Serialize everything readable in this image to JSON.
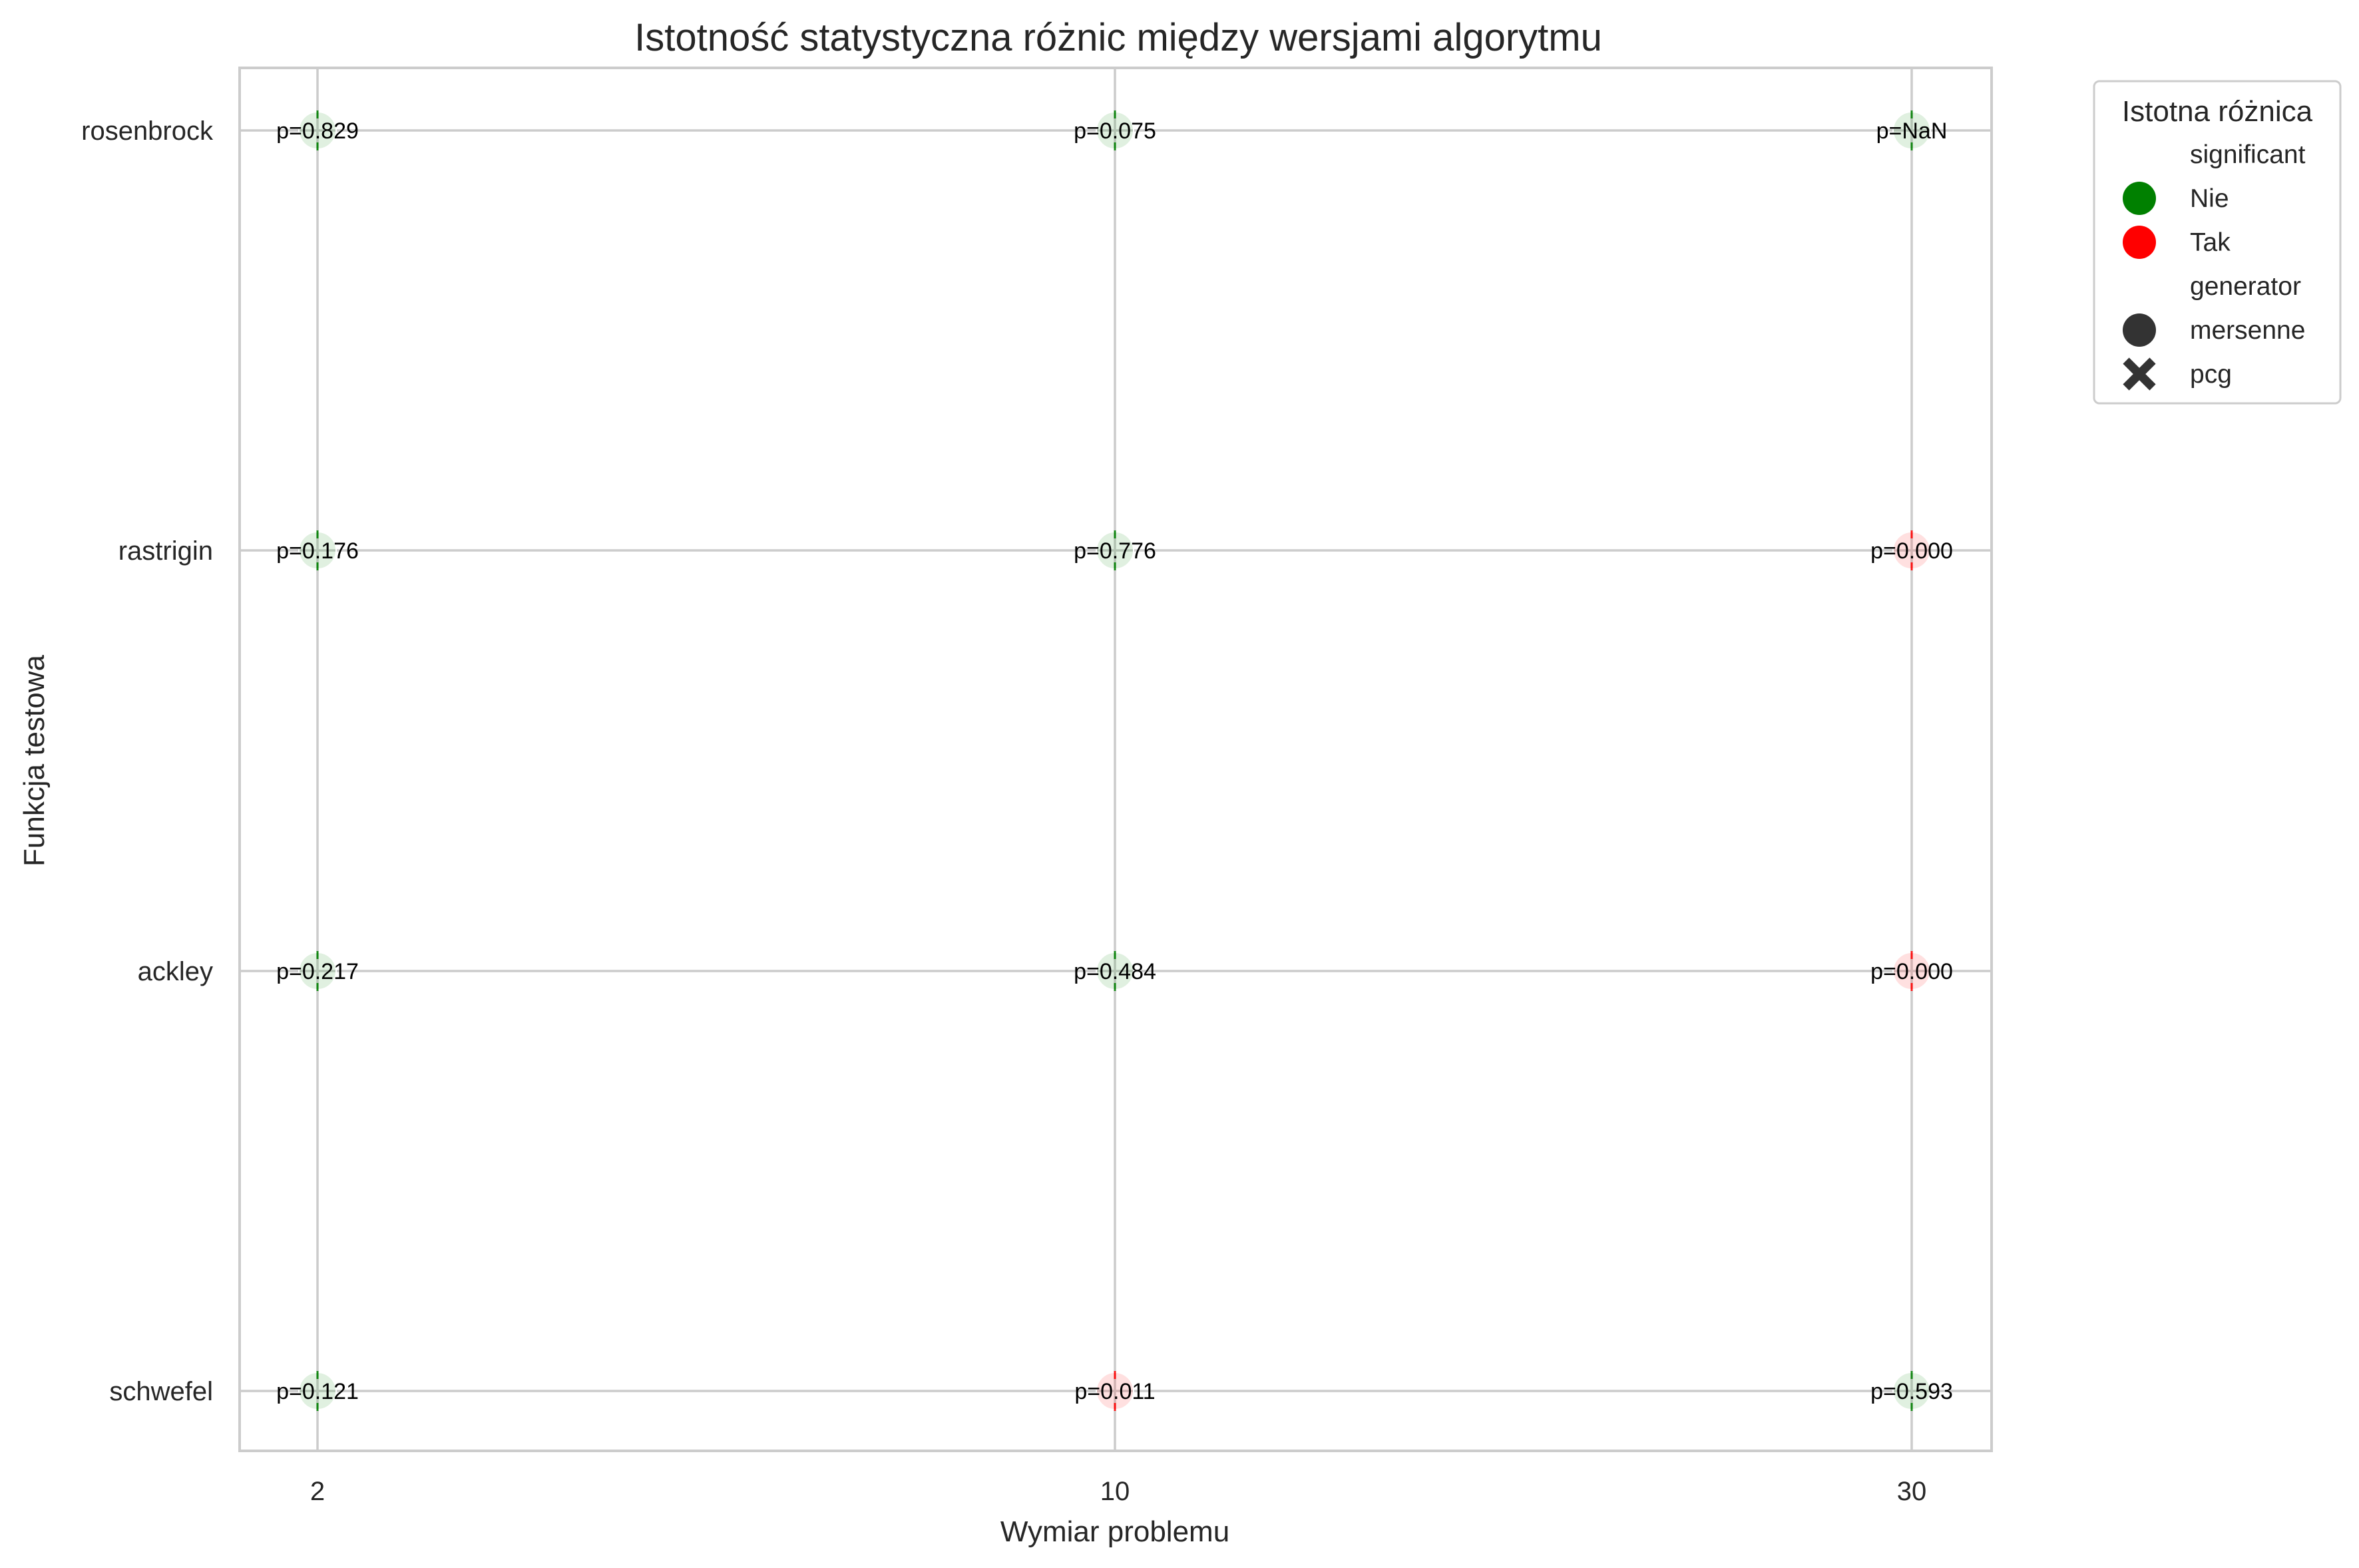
{
  "chart_data": {
    "type": "scatter",
    "title": "Istotność statystyczna różnic między wersjami algorytmu",
    "xlabel": "Wymiar problemu",
    "ylabel": "Funkcja testowa",
    "x_categories": [
      "2",
      "10",
      "30"
    ],
    "y_categories": [
      "rosenbrock",
      "rastrigin",
      "ackley",
      "schwefel"
    ],
    "grid": true,
    "legend": {
      "title": "Istotna różnica",
      "placement": "outside top-right",
      "hue_header": "significant",
      "hue_items": [
        {
          "label": "Nie",
          "color": "#008000"
        },
        {
          "label": "Tak",
          "color": "#ff0000"
        }
      ],
      "style_header": "generator",
      "style_items": [
        {
          "label": "mersenne",
          "marker": "circle"
        },
        {
          "label": "pcg",
          "marker": "x"
        }
      ]
    },
    "points": [
      {
        "x": "2",
        "y": "rosenbrock",
        "p": "p=0.829",
        "significant": "Nie"
      },
      {
        "x": "10",
        "y": "rosenbrock",
        "p": "p=0.075",
        "significant": "Nie"
      },
      {
        "x": "30",
        "y": "rosenbrock",
        "p": "p=NaN",
        "significant": "Nie"
      },
      {
        "x": "2",
        "y": "rastrigin",
        "p": "p=0.176",
        "significant": "Nie"
      },
      {
        "x": "10",
        "y": "rastrigin",
        "p": "p=0.776",
        "significant": "Nie"
      },
      {
        "x": "30",
        "y": "rastrigin",
        "p": "p=0.000",
        "significant": "Tak"
      },
      {
        "x": "2",
        "y": "ackley",
        "p": "p=0.217",
        "significant": "Nie"
      },
      {
        "x": "10",
        "y": "ackley",
        "p": "p=0.484",
        "significant": "Nie"
      },
      {
        "x": "30",
        "y": "ackley",
        "p": "p=0.000",
        "significant": "Tak"
      },
      {
        "x": "2",
        "y": "schwefel",
        "p": "p=0.121",
        "significant": "Nie"
      },
      {
        "x": "10",
        "y": "schwefel",
        "p": "p=0.011",
        "significant": "Tak"
      },
      {
        "x": "30",
        "y": "schwefel",
        "p": "p=0.593",
        "significant": "Nie"
      }
    ],
    "colors": {
      "Nie": "#008000",
      "Tak": "#ff0000"
    }
  }
}
